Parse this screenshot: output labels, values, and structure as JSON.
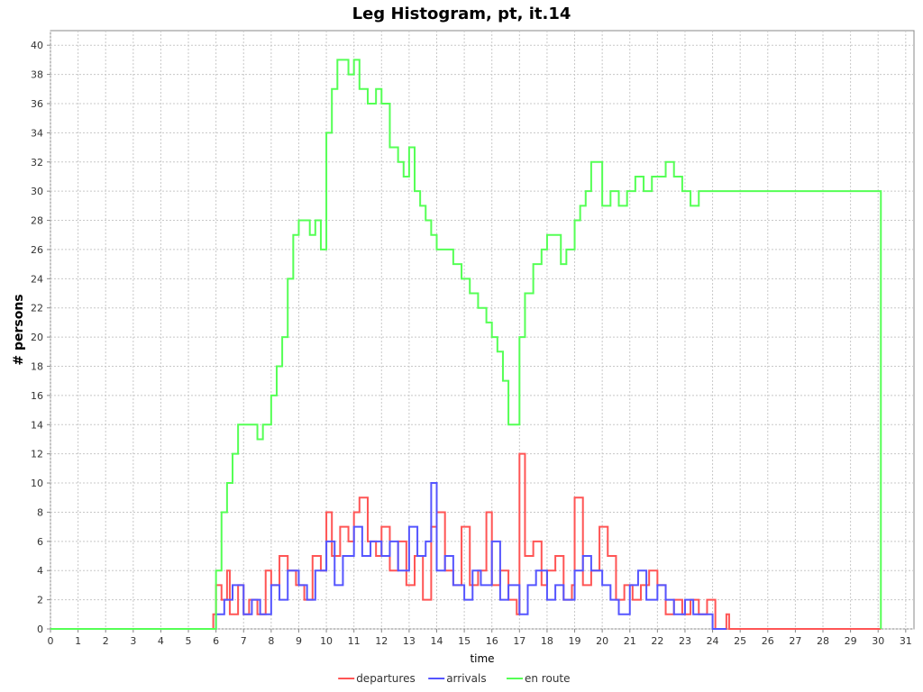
{
  "chart_data": {
    "type": "line",
    "title": "Leg Histogram, pt, it.14",
    "xlabel": "time",
    "ylabel": "# persons",
    "xlim": [
      0,
      31.3
    ],
    "ylim": [
      0,
      41
    ],
    "x_ticks": [
      0,
      1,
      2,
      3,
      4,
      5,
      6,
      7,
      8,
      9,
      10,
      11,
      12,
      13,
      14,
      15,
      16,
      17,
      18,
      19,
      20,
      21,
      22,
      23,
      24,
      25,
      26,
      27,
      28,
      29,
      30,
      31
    ],
    "y_ticks": [
      0,
      2,
      4,
      6,
      8,
      10,
      12,
      14,
      16,
      18,
      20,
      22,
      24,
      26,
      28,
      30,
      32,
      34,
      36,
      38,
      40
    ],
    "grid": true,
    "legend_position": "bottom",
    "series": [
      {
        "name": "departures",
        "color": "#ff5555",
        "x": [
          0,
          5.9,
          6.0,
          6.2,
          6.4,
          6.5,
          6.8,
          7.0,
          7.2,
          7.5,
          7.8,
          8.0,
          8.3,
          8.6,
          8.9,
          9.2,
          9.5,
          9.8,
          10.0,
          10.2,
          10.5,
          10.8,
          11.0,
          11.2,
          11.5,
          11.8,
          12.0,
          12.3,
          12.6,
          12.9,
          13.2,
          13.5,
          13.8,
          14.0,
          14.3,
          14.6,
          14.9,
          15.2,
          15.5,
          15.8,
          16.0,
          16.3,
          16.6,
          16.9,
          17.0,
          17.2,
          17.5,
          17.8,
          18.0,
          18.3,
          18.6,
          18.9,
          19.0,
          19.3,
          19.6,
          19.9,
          20.2,
          20.5,
          20.8,
          21.1,
          21.4,
          21.7,
          22.0,
          22.3,
          22.6,
          22.9,
          23.2,
          23.5,
          23.8,
          24.1,
          24.5,
          24.6,
          30.1
        ],
        "y": [
          0,
          1,
          3,
          2,
          4,
          1,
          3,
          1,
          2,
          1,
          4,
          3,
          5,
          4,
          3,
          2,
          5,
          4,
          8,
          5,
          7,
          6,
          8,
          9,
          6,
          5,
          7,
          4,
          6,
          3,
          5,
          2,
          7,
          8,
          4,
          3,
          7,
          3,
          4,
          8,
          3,
          4,
          2,
          1,
          12,
          5,
          6,
          3,
          4,
          5,
          2,
          3,
          9,
          3,
          4,
          7,
          5,
          2,
          3,
          2,
          3,
          4,
          3,
          1,
          2,
          1,
          2,
          1,
          2,
          0,
          1,
          0,
          0
        ]
      },
      {
        "name": "arrivals",
        "color": "#5555ff",
        "x": [
          0,
          6.0,
          6.3,
          6.6,
          7.0,
          7.3,
          7.6,
          8.0,
          8.3,
          8.6,
          9.0,
          9.3,
          9.6,
          10.0,
          10.3,
          10.6,
          11.0,
          11.3,
          11.6,
          12.0,
          12.3,
          12.6,
          13.0,
          13.3,
          13.6,
          13.8,
          14.0,
          14.3,
          14.6,
          15.0,
          15.3,
          15.6,
          16.0,
          16.3,
          16.6,
          17.0,
          17.3,
          17.6,
          18.0,
          18.3,
          18.6,
          19.0,
          19.3,
          19.6,
          20.0,
          20.3,
          20.6,
          21.0,
          21.3,
          21.6,
          22.0,
          22.3,
          22.6,
          23.0,
          23.3,
          23.6,
          24.0,
          24.5
        ],
        "y": [
          0,
          1,
          2,
          3,
          1,
          2,
          1,
          3,
          2,
          4,
          3,
          2,
          4,
          6,
          3,
          5,
          7,
          5,
          6,
          5,
          6,
          4,
          7,
          5,
          6,
          10,
          4,
          5,
          3,
          2,
          4,
          3,
          6,
          2,
          3,
          1,
          3,
          4,
          2,
          3,
          2,
          4,
          5,
          4,
          3,
          2,
          1,
          3,
          4,
          2,
          3,
          2,
          1,
          2,
          1,
          1,
          0,
          0
        ]
      },
      {
        "name": "en route",
        "color": "#55ff55",
        "x": [
          0,
          6.0,
          6.2,
          6.4,
          6.6,
          6.8,
          7.0,
          7.5,
          7.7,
          8.0,
          8.2,
          8.4,
          8.6,
          8.8,
          9.0,
          9.2,
          9.4,
          9.6,
          9.8,
          10.0,
          10.2,
          10.4,
          10.6,
          10.8,
          11.0,
          11.2,
          11.5,
          11.8,
          12.0,
          12.3,
          12.6,
          12.8,
          13.0,
          13.2,
          13.4,
          13.6,
          13.8,
          14.0,
          14.3,
          14.6,
          14.9,
          15.2,
          15.5,
          15.8,
          16.0,
          16.2,
          16.4,
          16.6,
          16.8,
          17.0,
          17.2,
          17.5,
          17.8,
          18.0,
          18.3,
          18.5,
          18.7,
          19.0,
          19.2,
          19.4,
          19.6,
          20.0,
          20.3,
          20.6,
          20.9,
          21.2,
          21.5,
          21.8,
          22.0,
          22.3,
          22.6,
          22.9,
          23.2,
          23.5,
          24.0,
          24.5,
          29.8,
          30.0,
          30.1
        ],
        "y": [
          0,
          4,
          8,
          10,
          12,
          14,
          14,
          13,
          14,
          16,
          18,
          20,
          24,
          27,
          28,
          28,
          27,
          28,
          26,
          34,
          37,
          39,
          39,
          38,
          39,
          37,
          36,
          37,
          36,
          33,
          32,
          31,
          33,
          30,
          29,
          28,
          27,
          26,
          26,
          25,
          24,
          23,
          22,
          21,
          20,
          19,
          17,
          14,
          14,
          20,
          23,
          25,
          26,
          27,
          27,
          25,
          26,
          28,
          29,
          30,
          32,
          29,
          30,
          29,
          30,
          31,
          30,
          31,
          31,
          32,
          31,
          30,
          29,
          30,
          30,
          30,
          30,
          30,
          0
        ]
      }
    ]
  }
}
